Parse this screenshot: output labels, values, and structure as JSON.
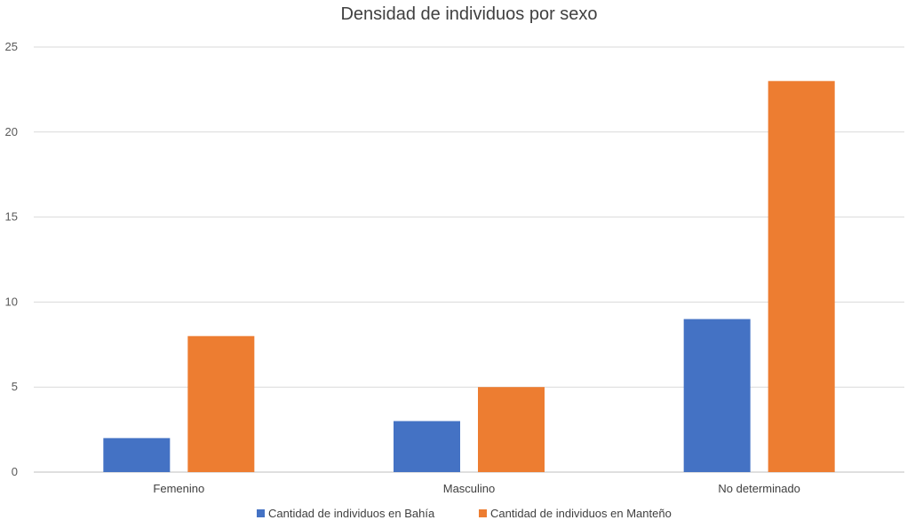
{
  "chart_data": {
    "type": "bar",
    "title": "Densidad de individuos por sexo",
    "xlabel": "",
    "ylabel": "",
    "categories": [
      "Femenino",
      "Masculino",
      "No determinado"
    ],
    "series": [
      {
        "name": "Cantidad de individuos en Bahía",
        "values": [
          2,
          3,
          9
        ],
        "color": "#4472c4"
      },
      {
        "name": "Cantidad de individuos en Manteño",
        "values": [
          8,
          5,
          23
        ],
        "color": "#ed7d31"
      }
    ],
    "ylim": [
      0,
      25
    ],
    "yticks": [
      "0",
      "5",
      "10",
      "15",
      "20",
      "25"
    ],
    "grid": true,
    "legend_position": "bottom"
  }
}
